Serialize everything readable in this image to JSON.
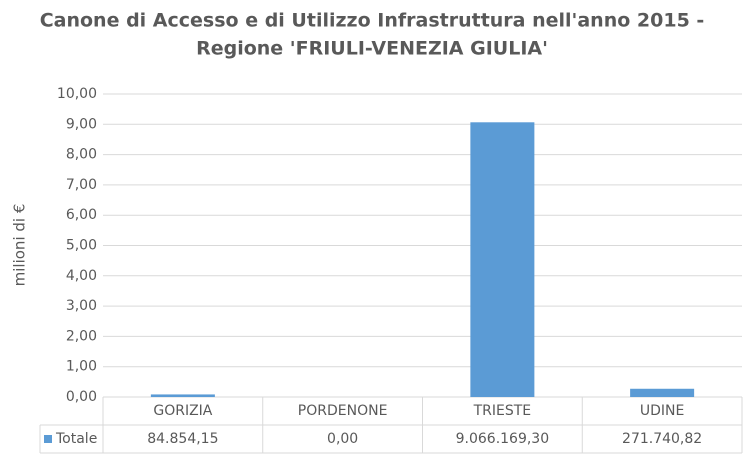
{
  "chart_data": {
    "type": "bar",
    "title": "Canone di Accesso e di Utilizzo Infrastruttura nell'anno 2015 -",
    "subtitle": "Regione 'FRIULI-VENEZIA GIULIA'",
    "y_label": "milioni di €",
    "categories": [
      "GORIZIA",
      "PORDENONE",
      "TRIESTE",
      "UDINE"
    ],
    "series": [
      {
        "name": "Totale",
        "color": "#5b9bd5",
        "values": [
          0.08485415,
          0,
          9.0661693,
          0.27174082
        ],
        "value_labels": [
          "84.854,15",
          "0,00",
          "9.066.169,30",
          "271.740,82"
        ]
      }
    ],
    "ylim": [
      0,
      10
    ],
    "yticks": [
      {
        "value": 0,
        "label": "0,00"
      },
      {
        "value": 1,
        "label": "1,00"
      },
      {
        "value": 2,
        "label": "2,00"
      },
      {
        "value": 3,
        "label": "3,00"
      },
      {
        "value": 4,
        "label": "4,00"
      },
      {
        "value": 5,
        "label": "5,00"
      },
      {
        "value": 6,
        "label": "6,00"
      },
      {
        "value": 7,
        "label": "7,00"
      },
      {
        "value": 8,
        "label": "8,00"
      },
      {
        "value": 9,
        "label": "9,00"
      },
      {
        "value": 10,
        "label": "10,00"
      }
    ],
    "grid": true
  }
}
